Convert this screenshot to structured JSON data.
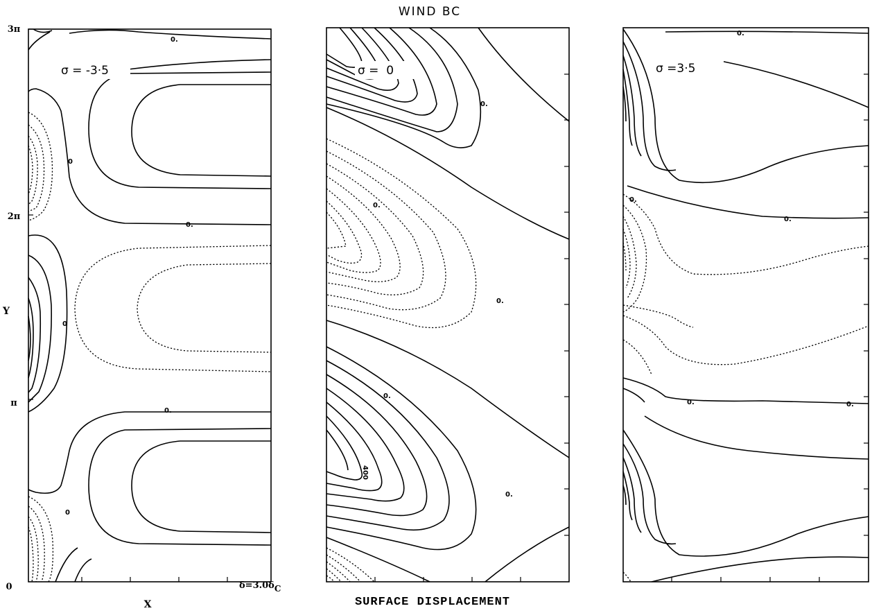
{
  "figure": {
    "title": "WIND BC",
    "caption": "SURFACE DISPLACEMENT",
    "x_axis_label": "X",
    "y_axis_label": "Y",
    "y_ticks": [
      "0",
      "π",
      "2π",
      "3π"
    ],
    "width_note": "δ=3.0δ",
    "width_note_sub": "C"
  },
  "panels": [
    {
      "sigma_label": "σ = -3·5",
      "contour_labels": [
        "0.",
        "0",
        "0.",
        "0.",
        "0",
        "0"
      ]
    },
    {
      "sigma_label": "σ =  0",
      "contour_labels": [
        "0.",
        "0.",
        "0.",
        "0.",
        "0.",
        "400"
      ]
    },
    {
      "sigma_label": "σ =3·5",
      "contour_labels": [
        "0.",
        "0.",
        "0.",
        "0.",
        "0."
      ]
    }
  ],
  "line_styles": {
    "positive": "solid",
    "negative": "dotted"
  },
  "colors": {
    "ink": "#000000",
    "paper": "#ffffff"
  }
}
